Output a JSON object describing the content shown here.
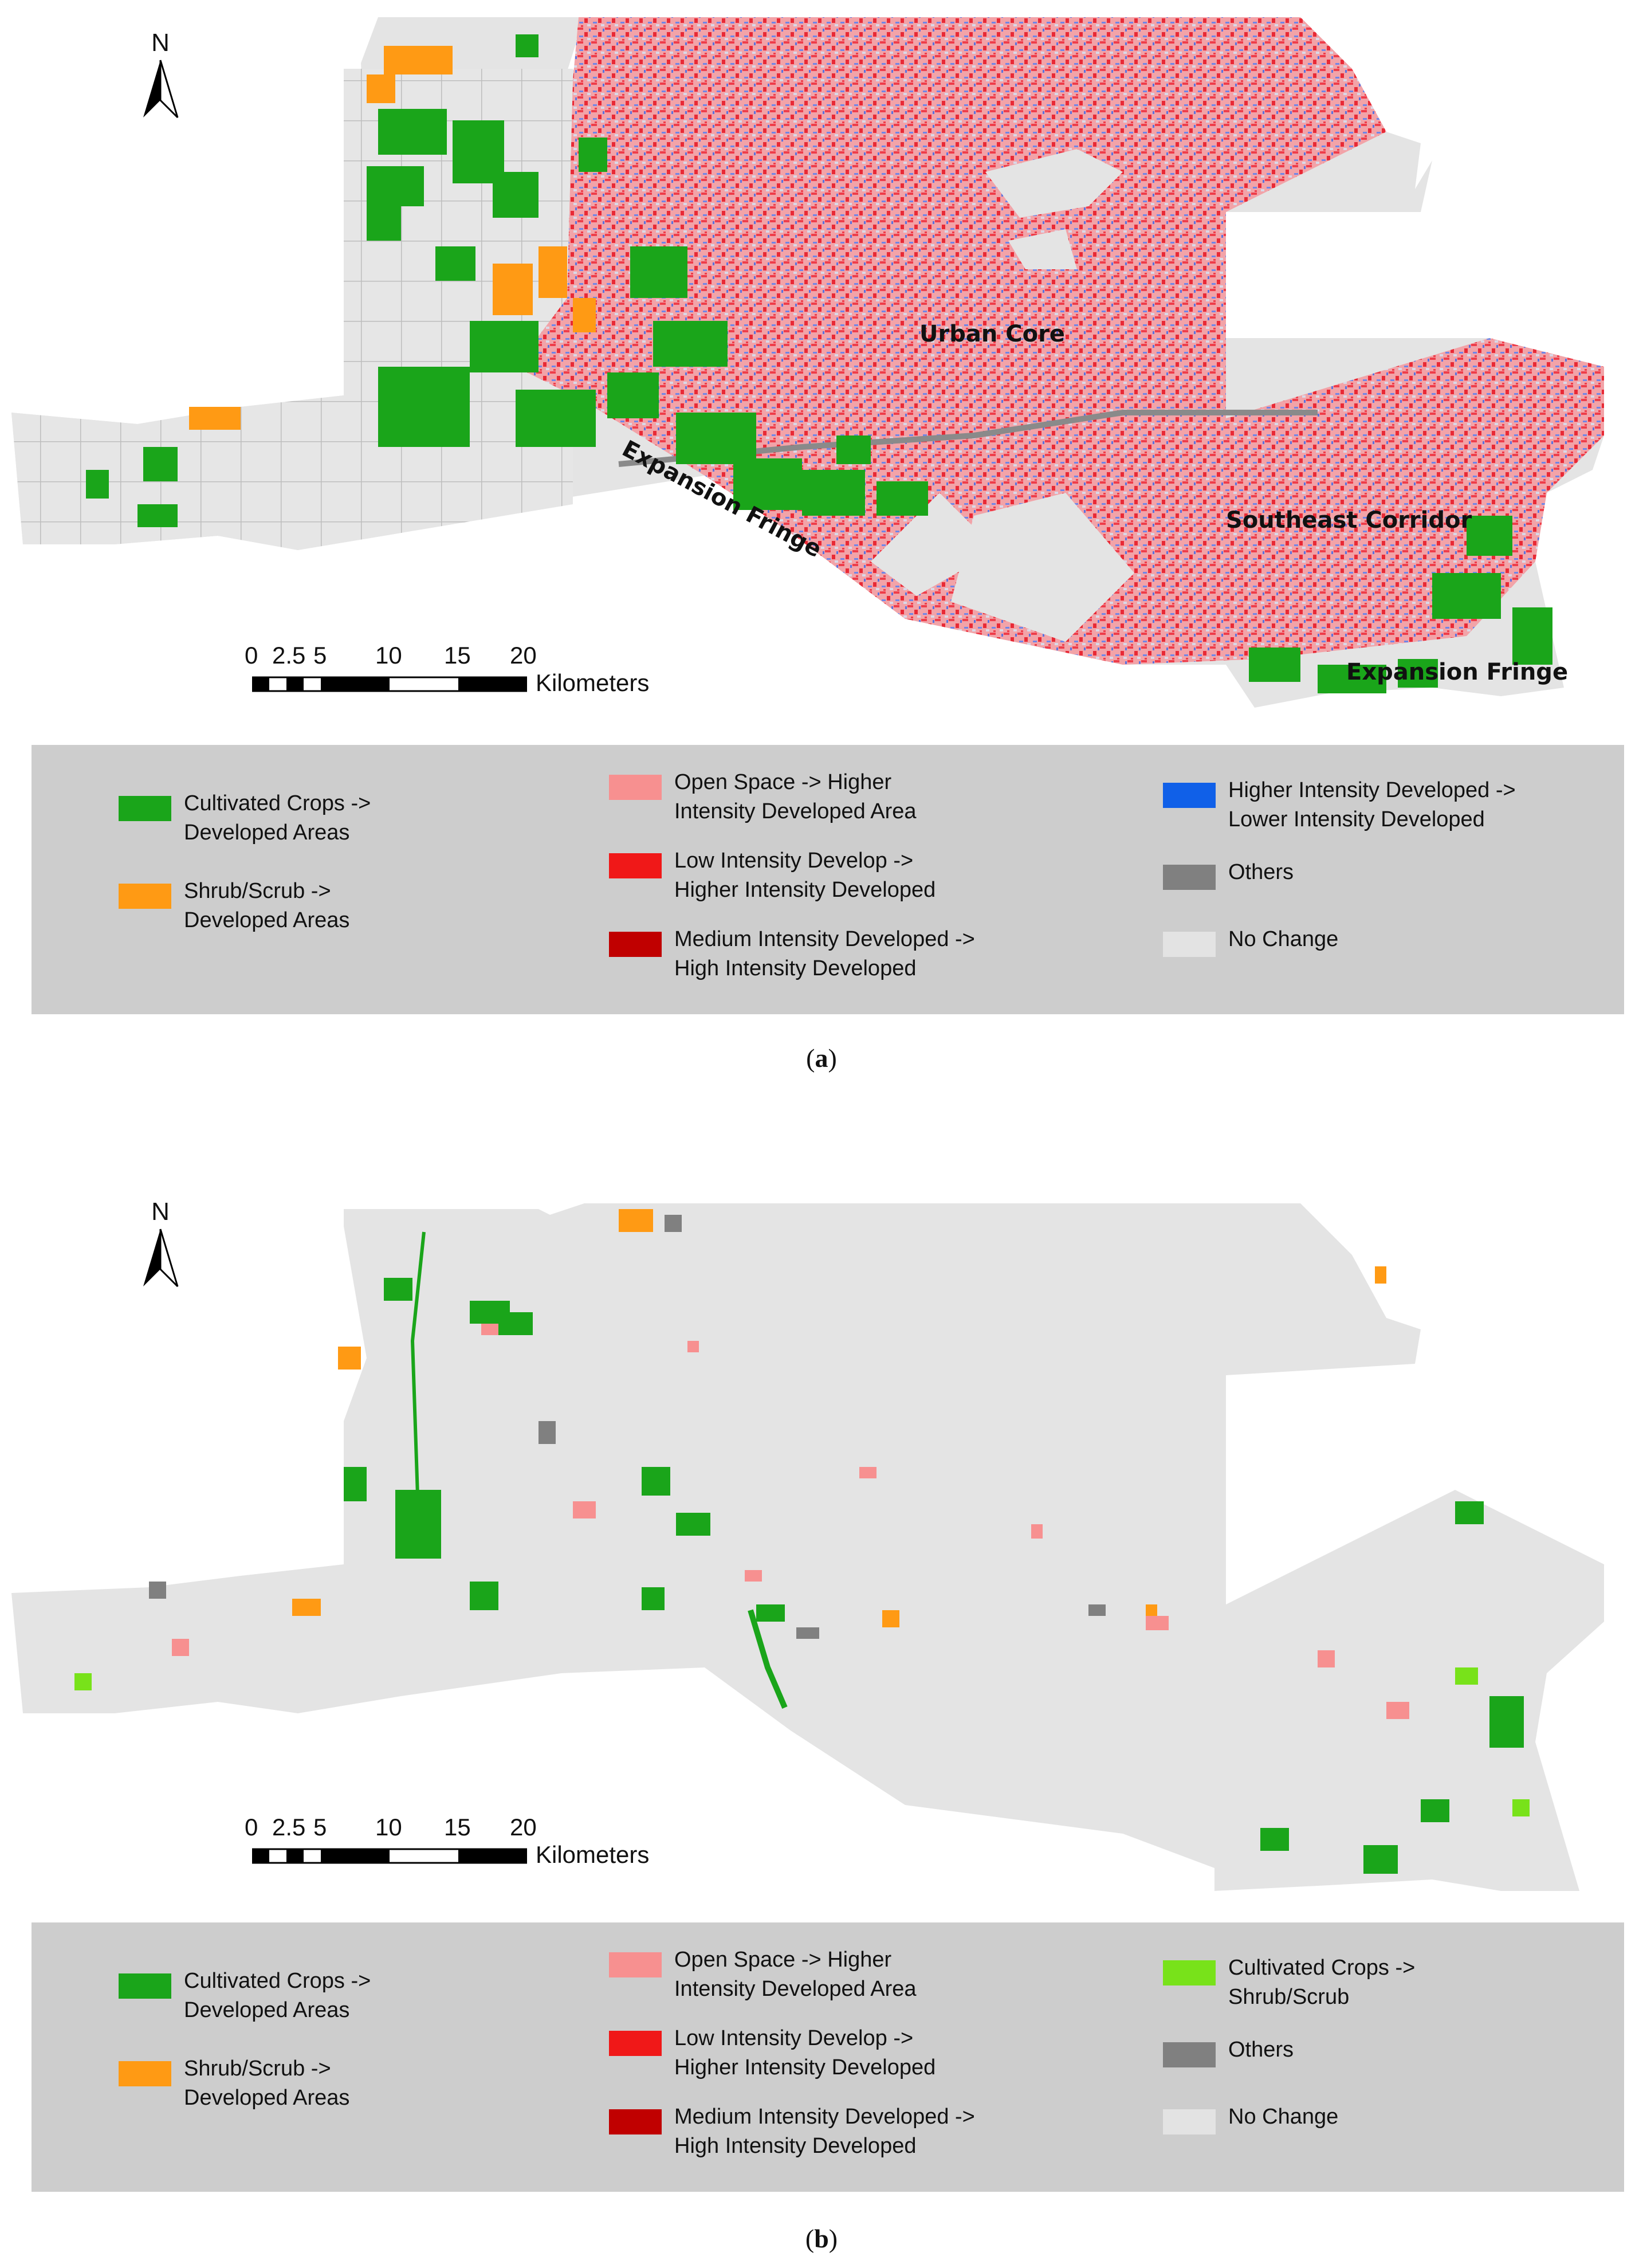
{
  "colors": {
    "cultivated_to_developed": "#1aa51a",
    "shrub_to_developed": "#ff9a14",
    "open_to_higher": "#f79090",
    "low_to_higher": "#f01818",
    "medium_to_high": "#c00000",
    "higher_to_lower": "#1060e8",
    "cultivated_to_shrub": "#78e21a",
    "others": "#808080",
    "no_change": "#e3e3e3",
    "legend_bg": "#cdcdcd"
  },
  "panel_a": {
    "north_label": "N",
    "region_labels": {
      "urban_core": "Urban Core",
      "expansion_fringe_1": "Expansion Fringe",
      "southeast_corridor": "Southeast Corridor",
      "expansion_fringe_2": "Expansion Fringe"
    },
    "scale": {
      "ticks": [
        "0",
        "2.5",
        "5",
        "10",
        "15",
        "20"
      ],
      "unit": "Kilometers"
    },
    "legend": [
      {
        "label": "Cultivated Crops ->\nDeveloped Areas",
        "color": "#1aa51a"
      },
      {
        "label": "Shrub/Scrub ->\nDeveloped Areas",
        "color": "#ff9a14"
      },
      {
        "label": "Open Space -> Higher\nIntensity Developed Area",
        "color": "#f79090"
      },
      {
        "label": "Low Intensity Develop ->\nHigher Intensity Developed",
        "color": "#f01818"
      },
      {
        "label": "Medium Intensity Developed ->\nHigh Intensity Developed",
        "color": "#c00000"
      },
      {
        "label": "Higher Intensity Developed ->\nLower Intensity Developed",
        "color": "#1060e8"
      },
      {
        "label": "Others",
        "color": "#808080"
      },
      {
        "label": "No Change",
        "color": "#e3e3e3"
      }
    ],
    "caption_letter": "a"
  },
  "panel_b": {
    "north_label": "N",
    "scale": {
      "ticks": [
        "0",
        "2.5",
        "5",
        "10",
        "15",
        "20"
      ],
      "unit": "Kilometers"
    },
    "legend": [
      {
        "label": "Cultivated Crops ->\nDeveloped Areas",
        "color": "#1aa51a"
      },
      {
        "label": "Shrub/Scrub ->\nDeveloped Areas",
        "color": "#ff9a14"
      },
      {
        "label": "Open Space -> Higher\nIntensity Developed Area",
        "color": "#f79090"
      },
      {
        "label": "Low Intensity Develop ->\nHigher Intensity Developed",
        "color": "#f01818"
      },
      {
        "label": "Medium Intensity Developed ->\nHigh Intensity Developed",
        "color": "#c00000"
      },
      {
        "label": "Cultivated Crops ->\nShrub/Scrub",
        "color": "#78e21a"
      },
      {
        "label": "Others",
        "color": "#808080"
      },
      {
        "label": "No Change",
        "color": "#e3e3e3"
      }
    ],
    "caption_letter": "b"
  }
}
